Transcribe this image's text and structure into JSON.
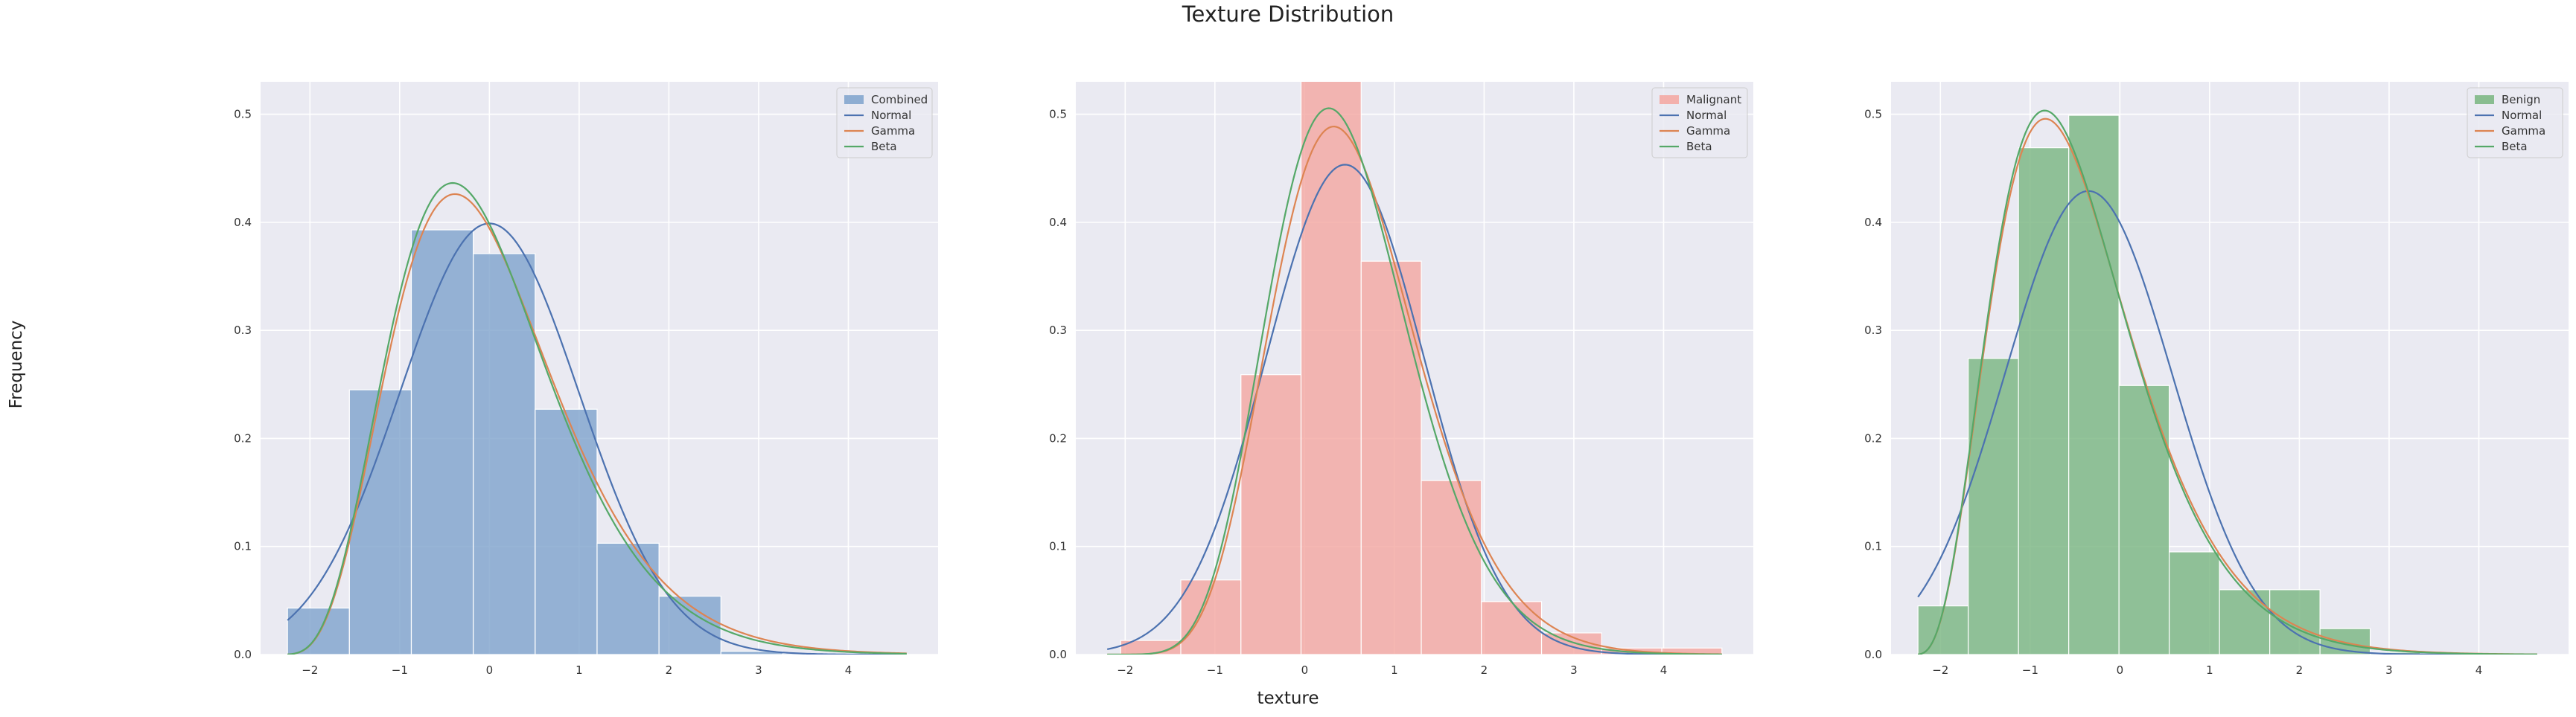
{
  "figure": {
    "title": "Texture Distribution",
    "xlabel": "texture",
    "ylabel": "Frequency"
  },
  "style": {
    "axes_bg": "#eaeaf2",
    "grid": "#ffffff",
    "tick_text": "#333333",
    "normal_color": "#4c72b0",
    "gamma_color": "#dd8452",
    "beta_color": "#55a868"
  },
  "chart_data": [
    {
      "type": "bar",
      "name": "Combined",
      "bar_color": "#7ea2cc",
      "xlim": [
        -2.55,
        5.0
      ],
      "ylim": [
        0,
        0.53
      ],
      "xticks": [
        -2,
        -1,
        0,
        1,
        2,
        3,
        4
      ],
      "yticks": [
        0.0,
        0.1,
        0.2,
        0.3,
        0.4,
        0.5
      ],
      "grid": true,
      "legend": "top-right",
      "legend_entries": [
        "Combined",
        "Normal",
        "Gamma",
        "Beta"
      ],
      "bin_edges": [
        -2.25,
        -1.56,
        -0.87,
        -0.18,
        0.51,
        1.2,
        1.89,
        2.58,
        3.27,
        3.96,
        4.65
      ],
      "values": [
        0.043,
        0.245,
        0.393,
        0.371,
        0.227,
        0.103,
        0.054,
        0.003,
        0.001,
        0.001
      ],
      "curves": {
        "normal": {
          "mean": 0.0,
          "sd": 1.0,
          "x_range": [
            -2.25,
            4.65
          ]
        },
        "gamma": {
          "a": 5.8,
          "loc": -2.4,
          "scale": 0.42,
          "x_range": [
            -2.25,
            4.65
          ]
        },
        "beta": {
          "a": 5.8,
          "b": 300,
          "loc": -2.4,
          "scale": 126,
          "x_range": [
            -2.25,
            4.65
          ]
        }
      }
    },
    {
      "type": "bar",
      "name": "Malignant",
      "bar_color": "#f4a6a0",
      "xlim": [
        -2.55,
        5.0
      ],
      "ylim": [
        0,
        0.53
      ],
      "xticks": [
        -2,
        -1,
        0,
        1,
        2,
        3,
        4
      ],
      "yticks": [
        0.0,
        0.1,
        0.2,
        0.3,
        0.4,
        0.5
      ],
      "grid": true,
      "legend": "top-right",
      "legend_entries": [
        "Malignant",
        "Normal",
        "Gamma",
        "Beta"
      ],
      "bin_edges": [
        -2.05,
        -1.38,
        -0.71,
        -0.04,
        0.63,
        1.3,
        1.97,
        2.64,
        3.31,
        3.98,
        4.65
      ],
      "values": [
        0.013,
        0.069,
        0.259,
        0.54,
        0.364,
        0.161,
        0.049,
        0.02,
        0.006,
        0.006
      ],
      "curves": {
        "normal": {
          "mean": 0.45,
          "sd": 0.88,
          "x_range": [
            -2.2,
            4.65
          ]
        },
        "gamma": {
          "a": 14,
          "loc": -2.6,
          "scale": 0.225,
          "x_range": [
            -2.2,
            4.65
          ]
        },
        "beta": {
          "a": 14,
          "b": 500,
          "loc": -2.6,
          "scale": 113,
          "x_range": [
            -2.2,
            4.65
          ]
        }
      }
    },
    {
      "type": "bar",
      "name": "Benign",
      "bar_color": "#78b57f",
      "xlim": [
        -2.55,
        5.0
      ],
      "ylim": [
        0,
        0.53
      ],
      "xticks": [
        -2,
        -1,
        0,
        1,
        2,
        3,
        4
      ],
      "yticks": [
        0.0,
        0.1,
        0.2,
        0.3,
        0.4,
        0.5
      ],
      "grid": true,
      "legend": "top-right",
      "legend_entries": [
        "Benign",
        "Normal",
        "Gamma",
        "Beta"
      ],
      "bin_edges": [
        -2.25,
        -1.69,
        -1.13,
        -0.57,
        -0.01,
        0.55,
        1.11,
        1.67,
        2.23,
        2.79,
        3.35
      ],
      "values": [
        0.045,
        0.274,
        0.469,
        0.499,
        0.249,
        0.095,
        0.06,
        0.06,
        0.024,
        0.002
      ],
      "curves": {
        "normal": {
          "mean": -0.35,
          "sd": 0.93,
          "x_range": [
            -2.25,
            4.65
          ]
        },
        "gamma": {
          "a": 4.5,
          "loc": -2.3,
          "scale": 0.42,
          "x_range": [
            -2.25,
            4.65
          ]
        },
        "beta": {
          "a": 4.5,
          "b": 280,
          "loc": -2.3,
          "scale": 118,
          "x_range": [
            -2.25,
            4.65
          ]
        }
      }
    }
  ]
}
